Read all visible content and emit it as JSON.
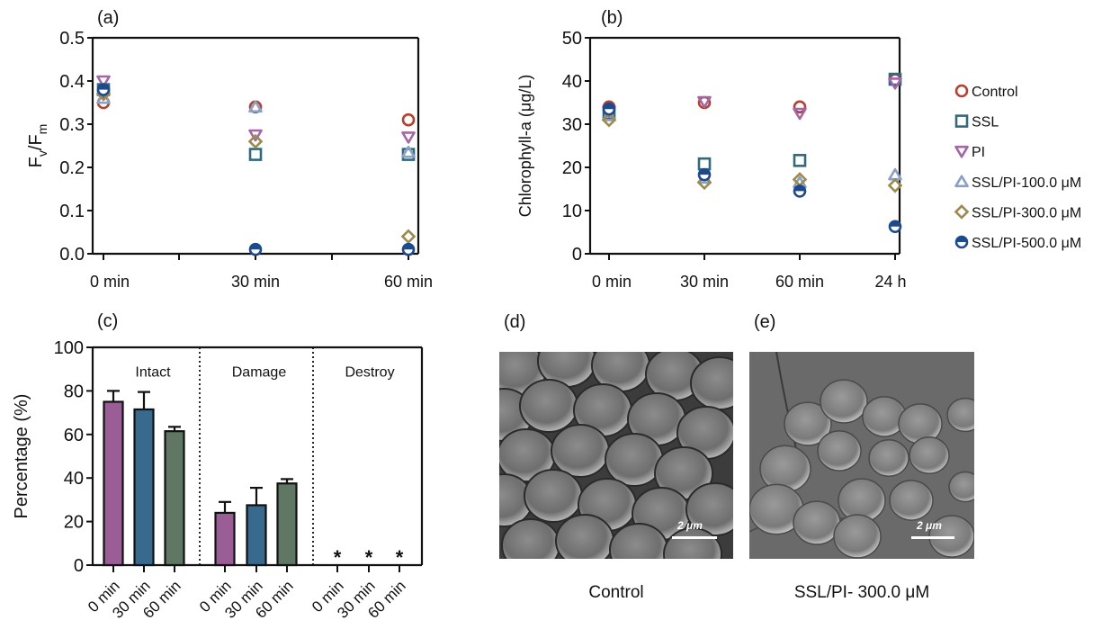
{
  "colors": {
    "Control": "#b5402f",
    "SSL": "#2f6b7c",
    "PI": "#a466a6",
    "SSL/PI-100.0 μM": "#8aa0c4",
    "SSL/PI-300.0 μM": "#9c8a4e",
    "SSL/PI-500.0 μM": "#1d4a8c",
    "bar_0min": "#9b5d95",
    "bar_30min": "#376a8c",
    "bar_60min": "#607763"
  },
  "legend": {
    "items": [
      {
        "label": "Control",
        "marker": "circle-open"
      },
      {
        "label": "SSL",
        "marker": "square-open"
      },
      {
        "label": "PI",
        "marker": "triangle-down-open"
      },
      {
        "label": "SSL/PI-100.0 μM",
        "marker": "triangle-up-open"
      },
      {
        "label": "SSL/PI-300.0 μM",
        "marker": "diamond-open"
      },
      {
        "label": "SSL/PI-500.0 μM",
        "marker": "circle-half"
      }
    ]
  },
  "chart_data": [
    {
      "panel": "(a)",
      "type": "scatter",
      "ylabel_main": "F",
      "ylabel_sub1": "v",
      "ylabel_mid": "/F",
      "ylabel_sub2": "m",
      "xlabel": "",
      "categories": [
        "0 min",
        "30 min",
        "60 min"
      ],
      "ylim": [
        0,
        0.5
      ],
      "yticks": [
        "0.0",
        "0.1",
        "0.2",
        "0.3",
        "0.4",
        "0.5"
      ],
      "series": [
        {
          "name": "Control",
          "values": [
            0.35,
            0.34,
            0.31
          ]
        },
        {
          "name": "SSL",
          "values": [
            0.38,
            0.23,
            0.23
          ]
        },
        {
          "name": "PI",
          "values": [
            0.4,
            0.275,
            0.27
          ]
        },
        {
          "name": "SSL/PI-100.0 μM",
          "values": [
            0.36,
            0.34,
            0.235
          ]
        },
        {
          "name": "SSL/PI-300.0 μM",
          "values": [
            0.37,
            0.26,
            0.04
          ]
        },
        {
          "name": "SSL/PI-500.0 μM",
          "values": [
            0.38,
            0.01,
            0.01
          ]
        }
      ]
    },
    {
      "panel": "(b)",
      "type": "scatter",
      "ylabel": "Chlorophyll-a (μg/L)",
      "xlabel": "",
      "categories": [
        "0 min",
        "30 min",
        "60 min",
        "24 h"
      ],
      "ylim": [
        0,
        50
      ],
      "yticks": [
        "0",
        "10",
        "20",
        "30",
        "40",
        "50"
      ],
      "series": [
        {
          "name": "Control",
          "values": [
            34,
            35,
            34,
            40.3
          ]
        },
        {
          "name": "SSL",
          "values": [
            32.5,
            20.8,
            21.6,
            40.4
          ]
        },
        {
          "name": "PI",
          "values": [
            33,
            35.2,
            32.5,
            39.5
          ]
        },
        {
          "name": "SSL/PI-100.0 μM",
          "values": [
            32,
            17.5,
            16.5,
            18.3
          ]
        },
        {
          "name": "SSL/PI-300.0 μM",
          "values": [
            31,
            16.5,
            17.2,
            15.8
          ]
        },
        {
          "name": "SSL/PI-500.0 μM",
          "values": [
            33.5,
            18.3,
            14.5,
            6.3
          ]
        }
      ]
    },
    {
      "panel": "(c)",
      "type": "bar",
      "ylabel": "Percentage (%)",
      "ylim": [
        0,
        100
      ],
      "yticks": [
        "0",
        "20",
        "40",
        "60",
        "80",
        "100"
      ],
      "groups": [
        {
          "name": "Intact",
          "categories": [
            "0 min",
            "30 min",
            "60 min"
          ],
          "values": [
            75,
            71.5,
            61.5
          ],
          "errors": [
            5,
            8,
            2
          ]
        },
        {
          "name": "Damage",
          "categories": [
            "0 min",
            "30 min",
            "60 min"
          ],
          "values": [
            24,
            27.5,
            37.5
          ],
          "errors": [
            5,
            8,
            2
          ]
        },
        {
          "name": "Destroy",
          "categories": [
            "0 min",
            "30 min",
            "60 min"
          ],
          "values": [
            0,
            0,
            0
          ],
          "errors": [
            0,
            0,
            0
          ],
          "annotation": "*"
        }
      ]
    }
  ],
  "images": {
    "d": {
      "panel": "(d)",
      "caption": "Control",
      "scale_label": "2 μm"
    },
    "e": {
      "panel": "(e)",
      "caption": "SSL/PI- 300.0 μM",
      "scale_label": "2 μm"
    }
  }
}
